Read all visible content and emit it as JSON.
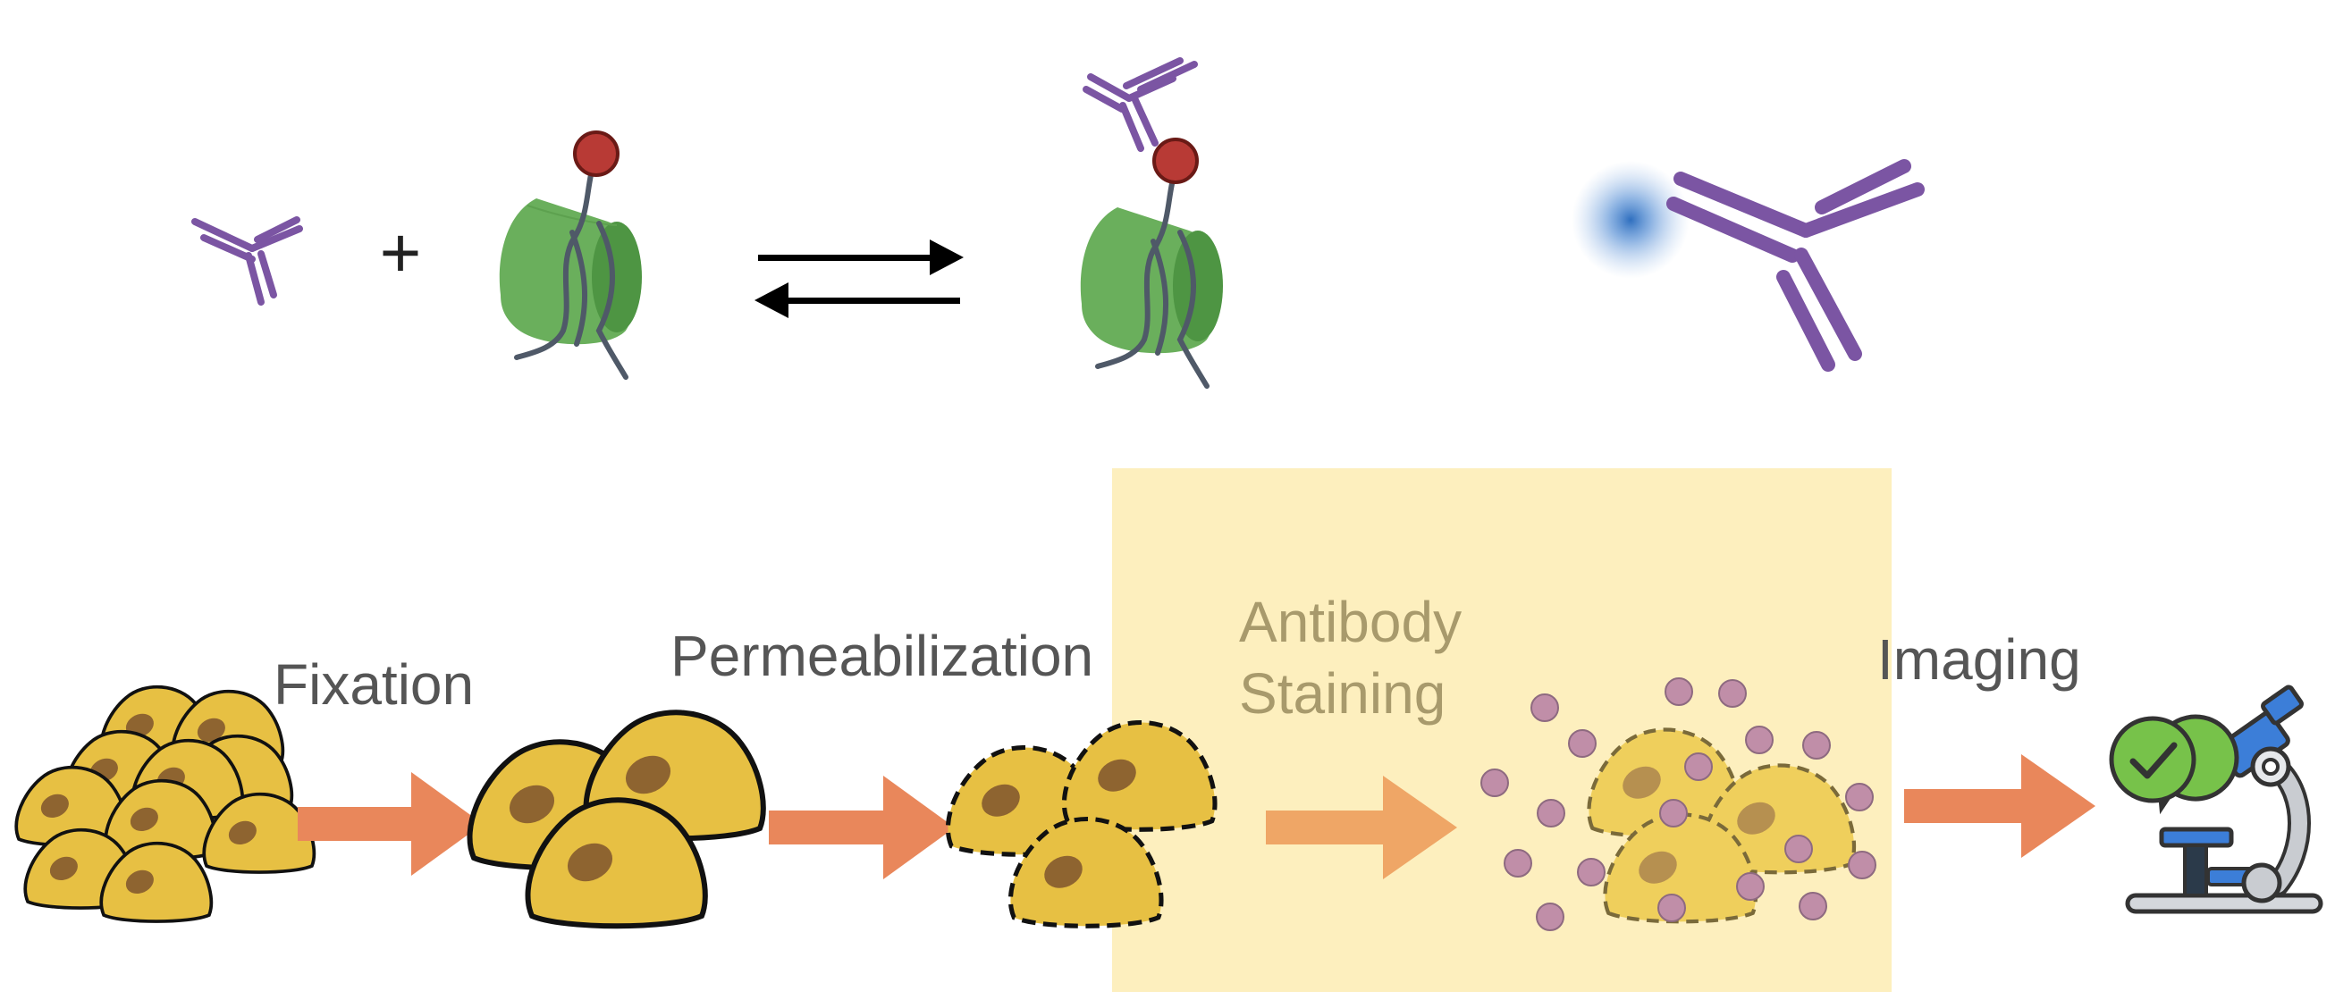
{
  "labels": {
    "fixation": "Fixation",
    "permeabilization": "Permeabilization",
    "antibody_staining_line1": "Antibody",
    "antibody_staining_line2": "Staining",
    "imaging": "Imaging"
  },
  "symbols": {
    "plus": "+"
  },
  "colors": {
    "antibody": "#7b55a3",
    "histone": "#6aaf5c",
    "histone_dark": "#4e9543",
    "dna": "#4f5968",
    "modification": "#b83a35",
    "arrow_black": "#000000",
    "process_arrow": "#e9875b",
    "cell_fill": "#e7c043",
    "cell_nucleus": "#8e6430",
    "staining_panel": "#fdeebb",
    "particle": "#c08ea8",
    "fluorophore": "#2f6fbf",
    "check_green": "#77c24a",
    "microscope_blue": "#3c7ed8",
    "microscope_gray": "#c9ccd1"
  },
  "icons": [
    "antibody-icon",
    "nucleosome-icon",
    "equilibrium-arrows-icon",
    "fluorescent-antibody-icon",
    "cell-icon",
    "microscope-icon",
    "check-badge-icon"
  ]
}
